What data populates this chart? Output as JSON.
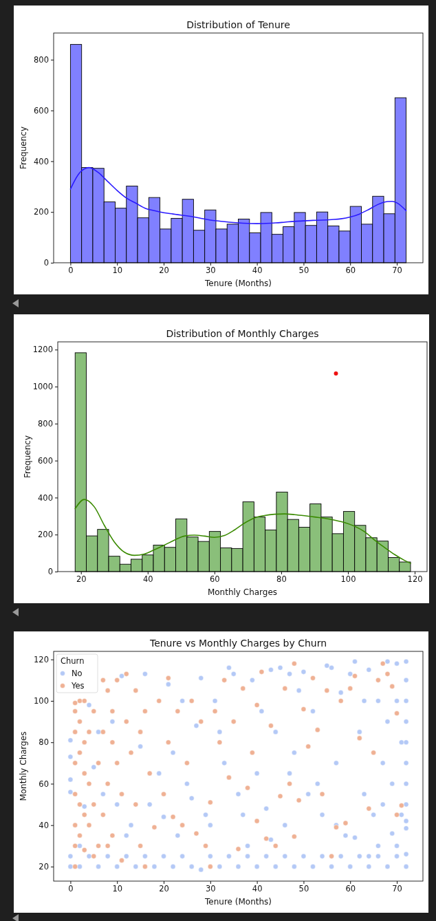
{
  "chart_data": [
    {
      "type": "histogram",
      "title": "Distribution of Tenure",
      "xlabel": "Tenure (Months)",
      "ylabel": "Frequency",
      "color": "#8080ff",
      "bins": [
        0,
        2.4,
        4.8,
        7.2,
        9.6,
        12,
        14.4,
        16.8,
        19.2,
        21.6,
        24,
        26.4,
        28.8,
        31.2,
        33.6,
        36,
        38.4,
        40.8,
        43.2,
        45.6,
        48,
        50.4,
        52.8,
        55.2,
        57.6,
        60,
        62.4,
        64.8,
        67.2,
        69.6,
        72
      ],
      "values": [
        860,
        375,
        372,
        240,
        215,
        302,
        177,
        257,
        133,
        175,
        250,
        128,
        208,
        133,
        152,
        172,
        118,
        198,
        112,
        142,
        198,
        147,
        200,
        145,
        125,
        222,
        152,
        262,
        193,
        650
      ],
      "series": [
        {
          "type": "line",
          "color": "#2a1aff",
          "x": [
            0,
            2,
            4,
            6,
            8,
            10,
            12,
            14,
            16,
            18,
            20,
            22,
            24,
            26,
            28,
            30,
            32,
            34,
            36,
            38,
            40,
            42,
            44,
            46,
            48,
            50,
            52,
            54,
            56,
            58,
            60,
            62,
            64,
            66,
            68,
            69,
            70,
            72
          ],
          "values": [
            290,
            355,
            375,
            355,
            320,
            285,
            255,
            235,
            215,
            205,
            197,
            192,
            187,
            182,
            175,
            168,
            164,
            160,
            157,
            155,
            154,
            155,
            157,
            160,
            163,
            165,
            167,
            168,
            170,
            173,
            180,
            192,
            210,
            230,
            241,
            242,
            236,
            205
          ]
        }
      ],
      "xlim": [
        -3.6,
        75.6
      ],
      "ylim": [
        0,
        905
      ],
      "xticks": [
        0,
        10,
        20,
        30,
        40,
        50,
        60,
        70
      ],
      "yticks": [
        0,
        200,
        400,
        600,
        800
      ]
    },
    {
      "type": "histogram",
      "title": "Distribution of Monthly Charges",
      "xlabel": "Monthly Charges",
      "ylabel": "Frequency",
      "color": "#8abf7a",
      "bins": [
        18.25,
        21.6,
        24.95,
        28.3,
        31.65,
        35,
        38.35,
        41.7,
        45.05,
        48.4,
        51.75,
        55.1,
        58.45,
        61.8,
        65.15,
        68.5,
        71.85,
        75.2,
        78.55,
        81.9,
        85.25,
        88.6,
        91.95,
        95.3,
        98.65,
        102,
        105.35,
        108.7,
        112.05,
        115.4,
        118.75
      ],
      "values": [
        1183,
        193,
        228,
        83,
        40,
        67,
        90,
        143,
        131,
        285,
        187,
        163,
        217,
        128,
        125,
        377,
        295,
        225,
        430,
        282,
        240,
        366,
        295,
        205,
        325,
        250,
        183,
        165,
        76,
        52
      ],
      "series": [
        {
          "type": "line",
          "color": "#3a8a00",
          "x": [
            18.25,
            21,
            24,
            27,
            30,
            33,
            36,
            39,
            42,
            45,
            48,
            51,
            54,
            57,
            60,
            63,
            66,
            69,
            72,
            75,
            78,
            81,
            84,
            87,
            90,
            93,
            96,
            99,
            102,
            105,
            108,
            111,
            114,
            117,
            118.75
          ],
          "values": [
            340,
            390,
            350,
            250,
            160,
            105,
            88,
            95,
            118,
            143,
            170,
            192,
            197,
            192,
            185,
            195,
            225,
            262,
            290,
            303,
            310,
            312,
            308,
            302,
            295,
            288,
            278,
            265,
            245,
            215,
            170,
            130,
            92,
            60,
            45
          ]
        },
        {
          "type": "scatter",
          "color": "#ee1111",
          "x": [
            96.4
          ],
          "values": [
            1071
          ]
        }
      ],
      "xlim": [
        13.05,
        123.7
      ],
      "ylim": [
        0,
        1242
      ],
      "xticks": [
        20,
        40,
        60,
        80,
        100,
        120
      ],
      "yticks": [
        0,
        200,
        400,
        600,
        800,
        1000,
        1200
      ]
    },
    {
      "type": "scatter",
      "title": "Tenure vs Monthly Charges by Churn",
      "xlabel": "Tenure (Months)",
      "ylabel": "Monthly Charges",
      "legend": "top left",
      "legend_title": "Churn",
      "marker": "circle",
      "series": [
        {
          "name": "No",
          "color": "#b4c9f6",
          "x": [
            0,
            0,
            0,
            0,
            0,
            0,
            2,
            4,
            6,
            8,
            10,
            12,
            14,
            16,
            18,
            20,
            22,
            24,
            26,
            28,
            30,
            32,
            34,
            36,
            38,
            40,
            42,
            44,
            46,
            48,
            50,
            52,
            54,
            56,
            58,
            60,
            62,
            64,
            66,
            68,
            70,
            72,
            72,
            3,
            5,
            7,
            9,
            11,
            13,
            15,
            17,
            19,
            21,
            23,
            25,
            27,
            29,
            31,
            33,
            34,
            35,
            36,
            38,
            39,
            40,
            42,
            43,
            44,
            45,
            46,
            47,
            48,
            50,
            51,
            52,
            54,
            55,
            56,
            57,
            58,
            59,
            60,
            61,
            62,
            63,
            64,
            65,
            66,
            66,
            67,
            68,
            68,
            69,
            69,
            70,
            70,
            71,
            71,
            72,
            72,
            72,
            72,
            72,
            72,
            72,
            72,
            72,
            72,
            2,
            4,
            6,
            10,
            12,
            16,
            20,
            22,
            24,
            26,
            28,
            30,
            32,
            37,
            41,
            43,
            47,
            49,
            53,
            57,
            61,
            63,
            64,
            67,
            70
          ],
          "values": [
            20,
            25,
            56,
            62,
            73,
            81,
            20,
            25,
            20,
            25,
            20,
            25,
            20,
            25,
            20,
            25,
            20,
            25,
            20,
            18.5,
            25,
            20,
            25,
            20,
            25,
            20,
            25,
            20,
            25,
            20,
            25,
            20,
            25,
            20,
            25,
            20,
            25,
            20,
            25,
            20,
            25,
            20,
            26,
            49,
            68,
            55,
            90,
            112,
            40,
            78,
            50,
            65,
            108,
            35,
            60,
            88,
            45,
            100,
            70,
            116,
            113,
            55,
            30,
            110,
            65,
            48,
            115,
            85,
            116,
            40,
            113,
            75,
            114,
            55,
            95,
            45,
            117,
            116,
            70,
            104,
            35,
            113,
            119,
            85,
            55,
            115,
            45,
            30,
            100,
            70,
            119,
            90,
            36,
            60,
            118,
            100,
            80,
            45,
            119,
            110,
            100,
            90,
            80,
            70,
            60,
            50,
            42,
            38.5,
            30,
            98,
            85,
            50,
            35,
            113,
            44,
            75,
            100,
            53,
            111,
            40,
            85,
            45,
            95,
            33,
            65,
            105,
            60,
            40,
            34,
            100,
            25,
            50,
            30
          ]
        },
        {
          "name": "Yes",
          "color": "#efb194",
          "x": [
            1,
            1,
            1,
            1,
            1,
            1,
            1,
            1,
            2,
            2,
            2,
            2,
            2,
            3,
            3,
            3,
            3,
            3,
            4,
            4,
            4,
            5,
            5,
            5,
            6,
            6,
            7,
            7,
            7,
            8,
            8,
            8,
            9,
            9,
            9,
            10,
            10,
            11,
            11,
            12,
            12,
            13,
            14,
            14,
            15,
            15,
            16,
            16,
            17,
            18,
            19,
            20,
            21,
            21,
            22,
            23,
            24,
            25,
            26,
            27,
            28,
            29,
            30,
            30,
            31,
            32,
            33,
            34,
            35,
            36,
            37,
            38,
            39,
            40,
            40,
            41,
            42,
            43,
            44,
            45,
            46,
            47,
            48,
            48,
            49,
            50,
            51,
            52,
            53,
            54,
            55,
            56,
            57,
            58,
            59,
            60,
            61,
            62,
            64,
            65,
            66,
            67,
            68,
            69,
            70,
            71,
            70
          ],
          "values": [
            20,
            30,
            40,
            55,
            70,
            85,
            95,
            99,
            35,
            50,
            75,
            90,
            100,
            28,
            45,
            65,
            80,
            100,
            40,
            60,
            85,
            25,
            50,
            95,
            30,
            70,
            45,
            85,
            110,
            30,
            60,
            105,
            35,
            80,
            95,
            110,
            70,
            23,
            55,
            113,
            90,
            75,
            50,
            105,
            30,
            85,
            20,
            95,
            65,
            39,
            100,
            55,
            111,
            80,
            44,
            95,
            40,
            70,
            100,
            36,
            90,
            30,
            20,
            51,
            95,
            80,
            110,
            63,
            90,
            28.5,
            106,
            58,
            75,
            42,
            98,
            114,
            33.5,
            88,
            30,
            54,
            106,
            60,
            118,
            34.5,
            52,
            96,
            78,
            111,
            86,
            55,
            105,
            25,
            39,
            100,
            41,
            106,
            112,
            82,
            48,
            75,
            110,
            118,
            113,
            107,
            94,
            49.5,
            45
          ]
        }
      ],
      "xlim": [
        -3.6,
        75.6
      ],
      "ylim": [
        13,
        123.9
      ],
      "xticks": [
        0,
        10,
        20,
        30,
        40,
        50,
        60,
        70
      ],
      "yticks": [
        20,
        40,
        60,
        80,
        100,
        120
      ]
    }
  ]
}
